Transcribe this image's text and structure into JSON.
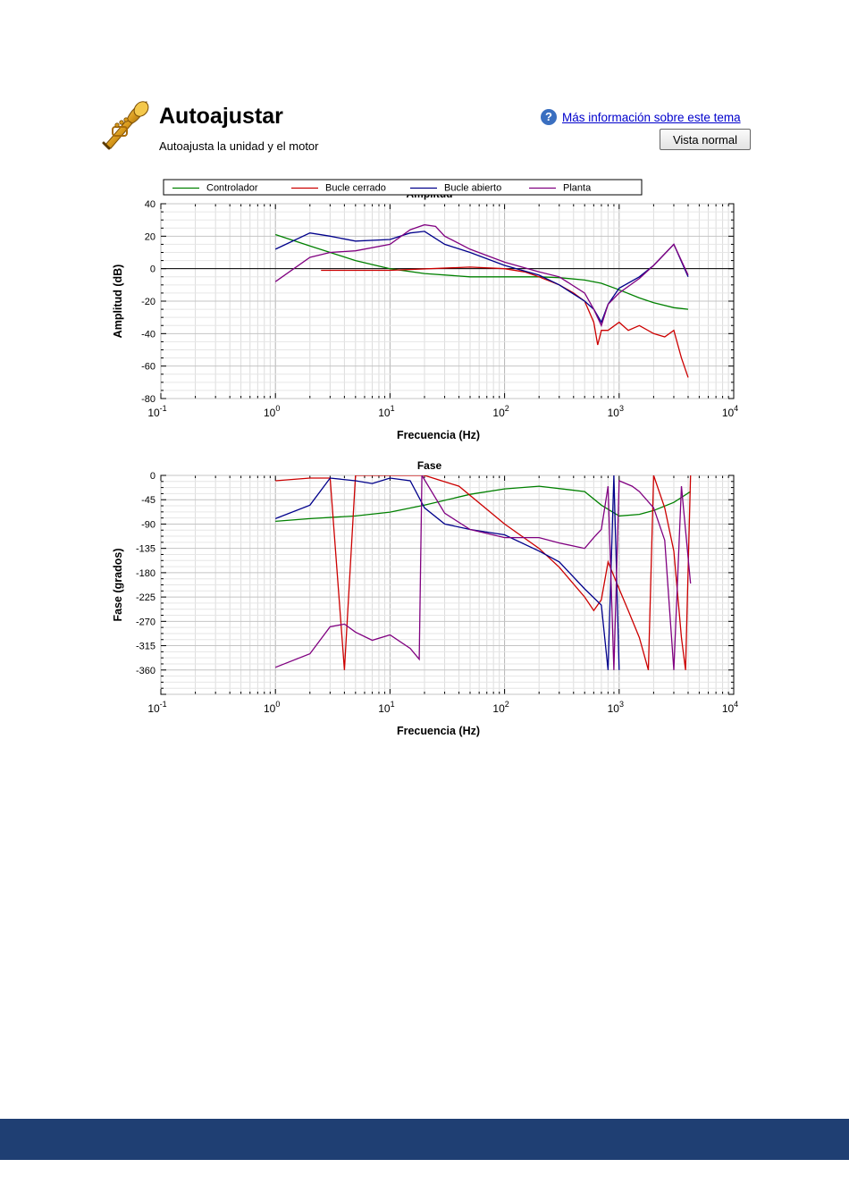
{
  "header": {
    "title": "Autoajustar",
    "subtitle": "Autoajusta la unidad y el motor",
    "help_link": "Más información sobre este tema",
    "help_icon": "question-icon",
    "view_button": "Vista normal",
    "app_icon": "trumpet-icon"
  },
  "colors": {
    "controlador": "#008000",
    "bucle_cerrado": "#cc0000",
    "bucle_abierto": "#00008b",
    "planta": "#800080",
    "footer": "#1f3f73"
  },
  "chart_data": [
    {
      "type": "line",
      "title": "Amplitud",
      "xlabel": "Frecuencia (Hz)",
      "ylabel": "Amplitud (dB)",
      "x_scale": "log",
      "xlim": [
        0.1,
        10000
      ],
      "ylim": [
        -80,
        40
      ],
      "yticks": [
        40,
        20,
        0,
        -20,
        -40,
        -60,
        -80
      ],
      "xticks": [
        {
          "base": "10",
          "exp": "-1"
        },
        {
          "base": "10",
          "exp": "0"
        },
        {
          "base": "10",
          "exp": "1"
        },
        {
          "base": "10",
          "exp": "2"
        },
        {
          "base": "10",
          "exp": "3"
        },
        {
          "base": "10",
          "exp": "4"
        }
      ],
      "grid": true,
      "legend_position": "top",
      "series": [
        {
          "name": "Controlador",
          "color": "#008000",
          "x": [
            1,
            2,
            3,
            5,
            10,
            20,
            50,
            100,
            200,
            300,
            500,
            700,
            1000,
            1500,
            2000,
            3000,
            4000
          ],
          "y": [
            21,
            14,
            10,
            5,
            0,
            -3,
            -5,
            -5,
            -5,
            -5.5,
            -7,
            -9,
            -13,
            -18,
            -21,
            -24,
            -25
          ]
        },
        {
          "name": "Bucle cerrado",
          "color": "#cc0000",
          "x": [
            2.5,
            10,
            50,
            100,
            150,
            200,
            300,
            400,
            500,
            600,
            650,
            700,
            800,
            1000,
            1200,
            1500,
            2000,
            2500,
            3000,
            3500,
            4000
          ],
          "y": [
            -1,
            -1,
            1,
            0,
            -2,
            -5,
            -10,
            -15,
            -20,
            -33,
            -47,
            -38,
            -38,
            -33,
            -38,
            -35,
            -40,
            -42,
            -38,
            -55,
            -67
          ]
        },
        {
          "name": "Bucle abierto",
          "color": "#00008b",
          "x": [
            1,
            2,
            3,
            5,
            10,
            15,
            20,
            30,
            50,
            100,
            200,
            300,
            500,
            600,
            700,
            800,
            1000,
            1500,
            2000,
            3000,
            4000
          ],
          "y": [
            12,
            22,
            20,
            17,
            18,
            22,
            23,
            15,
            10,
            2,
            -4,
            -10,
            -20,
            -25,
            -33,
            -22,
            -12,
            -5,
            2,
            15,
            -5
          ]
        },
        {
          "name": "Planta",
          "color": "#800080",
          "x": [
            1,
            2,
            3,
            5,
            10,
            15,
            20,
            25,
            30,
            50,
            100,
            200,
            300,
            500,
            600,
            700,
            800,
            1000,
            1500,
            2000,
            3000,
            4000
          ],
          "y": [
            -8,
            7,
            10,
            11,
            15,
            24,
            27,
            26,
            20,
            12,
            4,
            -2,
            -5,
            -15,
            -25,
            -35,
            -22,
            -15,
            -6,
            2,
            15,
            -4
          ]
        }
      ]
    },
    {
      "type": "line",
      "title": "Fase",
      "xlabel": "Frecuencia (Hz)",
      "ylabel": "Fase (grados)",
      "x_scale": "log",
      "xlim": [
        0.1,
        10000
      ],
      "ylim": [
        -405,
        0
      ],
      "yticks": [
        0,
        -45,
        -90,
        -135,
        -180,
        -225,
        -270,
        -315,
        -360
      ],
      "xticks": [
        {
          "base": "10",
          "exp": "-1"
        },
        {
          "base": "10",
          "exp": "0"
        },
        {
          "base": "10",
          "exp": "1"
        },
        {
          "base": "10",
          "exp": "2"
        },
        {
          "base": "10",
          "exp": "3"
        },
        {
          "base": "10",
          "exp": "4"
        }
      ],
      "grid": true,
      "series": [
        {
          "name": "Controlador",
          "color": "#008000",
          "x": [
            1,
            2,
            5,
            10,
            20,
            50,
            100,
            200,
            500,
            700,
            1000,
            1500,
            2000,
            3000,
            4200
          ],
          "y": [
            -85,
            -80,
            -75,
            -68,
            -55,
            -35,
            -25,
            -20,
            -30,
            -55,
            -75,
            -72,
            -65,
            -50,
            -30
          ]
        },
        {
          "name": "Bucle cerrado",
          "color": "#cc0000",
          "x": [
            1,
            2,
            3,
            4,
            5,
            10,
            20,
            40,
            100,
            200,
            300,
            500,
            600,
            700,
            800,
            1000,
            1200,
            1500,
            1800,
            2000,
            2500,
            3000,
            3500,
            3800,
            4200
          ],
          "y": [
            -10,
            -5,
            -5,
            -360,
            0,
            0,
            0,
            -20,
            -90,
            -135,
            -170,
            -225,
            -250,
            -230,
            -160,
            -210,
            -250,
            -300,
            -360,
            0,
            -60,
            -140,
            -300,
            -360,
            0
          ]
        },
        {
          "name": "Bucle abierto",
          "color": "#00008b",
          "x": [
            1,
            2,
            3,
            5,
            7,
            10,
            15,
            20,
            30,
            50,
            100,
            200,
            300,
            500,
            700,
            800,
            900,
            1000
          ],
          "y": [
            -80,
            -55,
            -5,
            -10,
            -15,
            -5,
            -10,
            -60,
            -90,
            -100,
            -110,
            -140,
            -160,
            -210,
            -240,
            -360,
            0,
            -360
          ]
        },
        {
          "name": "Planta",
          "color": "#800080",
          "x": [
            1,
            2,
            3,
            4,
            5,
            7,
            10,
            15,
            18,
            19,
            30,
            50,
            100,
            200,
            300,
            500,
            600,
            700,
            800,
            900,
            1000,
            1300,
            1500,
            2000,
            2500,
            3000,
            3500,
            4200
          ],
          "y": [
            -355,
            -330,
            -280,
            -275,
            -290,
            -305,
            -295,
            -320,
            -340,
            0,
            -70,
            -100,
            -115,
            -115,
            -125,
            -135,
            -115,
            -100,
            -20,
            -360,
            -10,
            -20,
            -30,
            -60,
            -120,
            -360,
            -20,
            -200
          ]
        }
      ]
    }
  ]
}
